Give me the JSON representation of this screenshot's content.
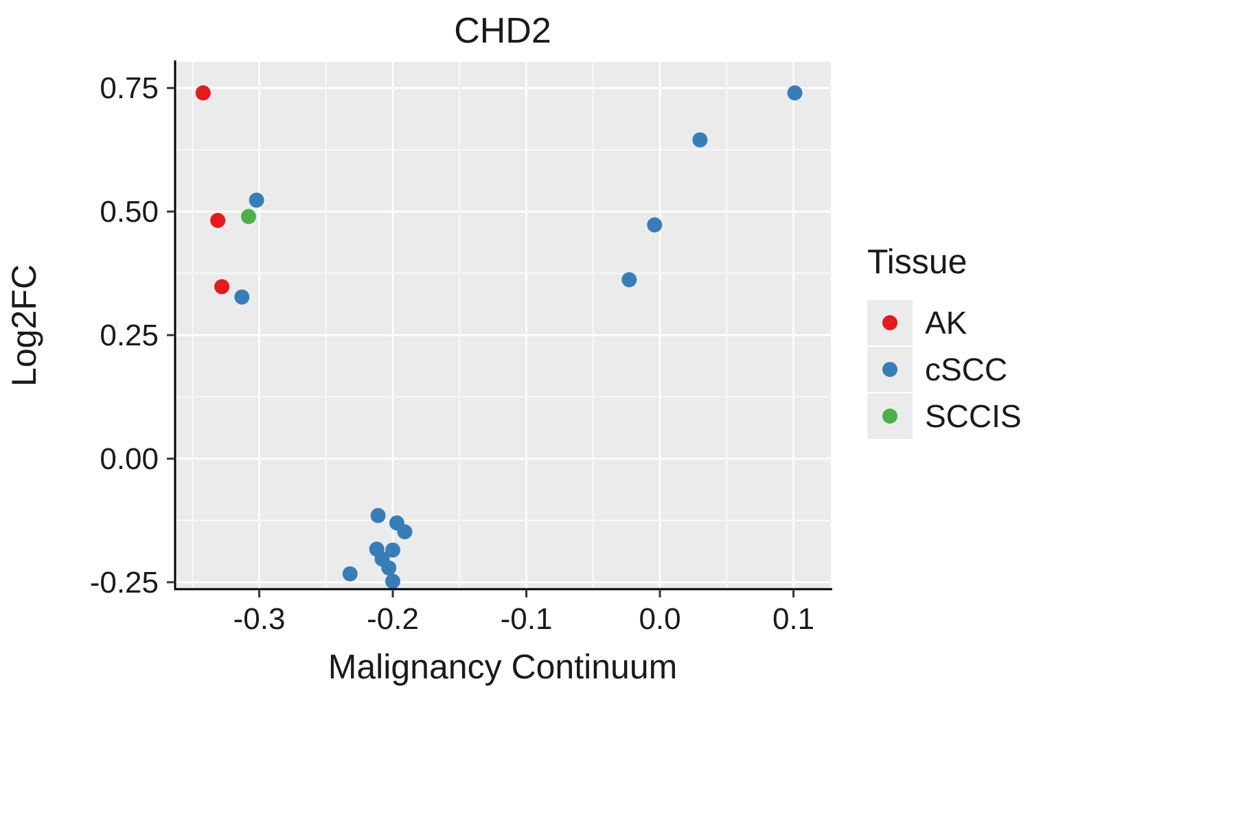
{
  "chart_data": {
    "type": "scatter",
    "title": "CHD2",
    "xlabel": "Malignancy Continuum",
    "ylabel": "Log2FC",
    "xlim": [
      -0.363,
      0.128
    ],
    "ylim": [
      -0.264,
      0.803
    ],
    "x_ticks": [
      -0.3,
      -0.2,
      -0.1,
      0.0,
      0.1
    ],
    "x_tick_labels": [
      "-0.3",
      "-0.2",
      "-0.1",
      "0.0",
      "0.1"
    ],
    "x_minor_ticks": [
      -0.35,
      -0.25,
      -0.15,
      -0.05,
      0.05
    ],
    "y_ticks": [
      -0.25,
      0.0,
      0.25,
      0.5,
      0.75
    ],
    "y_tick_labels": [
      "-0.25",
      "0.00",
      "0.25",
      "0.50",
      "0.75"
    ],
    "y_minor_ticks": [
      -0.125,
      0.125,
      0.375,
      0.625
    ],
    "grid": true,
    "panel_bg": "#EBEBEB",
    "grid_color": "#FFFFFF",
    "axis_line_color": "#000000",
    "tick_color": "#333333",
    "legend": {
      "title": "Tissue",
      "position": "right",
      "key_bg": "#EBEBEB",
      "entries": [
        {
          "label": "AK",
          "color": "#E41A1C"
        },
        {
          "label": "cSCC",
          "color": "#377EB8"
        },
        {
          "label": "SCCIS",
          "color": "#4DAF4A"
        }
      ]
    },
    "series": [
      {
        "name": "AK",
        "color": "#E41A1C",
        "points": [
          [
            -0.342,
            0.74
          ],
          [
            -0.331,
            0.482
          ],
          [
            -0.328,
            0.348
          ]
        ]
      },
      {
        "name": "cSCC",
        "color": "#377EB8",
        "points": [
          [
            0.101,
            0.74
          ],
          [
            0.03,
            0.645
          ],
          [
            -0.302,
            0.523
          ],
          [
            -0.004,
            0.473
          ],
          [
            -0.023,
            0.362
          ],
          [
            -0.313,
            0.327
          ],
          [
            -0.211,
            -0.115
          ],
          [
            -0.197,
            -0.13
          ],
          [
            -0.191,
            -0.148
          ],
          [
            -0.212,
            -0.183
          ],
          [
            -0.2,
            -0.185
          ],
          [
            -0.208,
            -0.203
          ],
          [
            -0.203,
            -0.221
          ],
          [
            -0.232,
            -0.233
          ],
          [
            -0.2,
            -0.248
          ]
        ]
      },
      {
        "name": "SCCIS",
        "color": "#4DAF4A",
        "points": [
          [
            -0.308,
            0.49
          ]
        ]
      }
    ]
  }
}
